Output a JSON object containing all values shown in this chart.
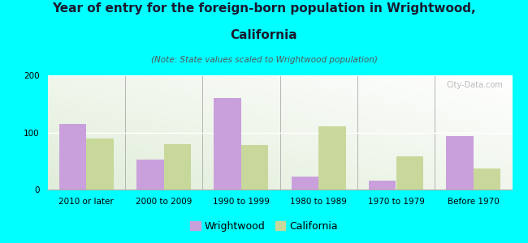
{
  "categories": [
    "2010 or later",
    "2000 to 2009",
    "1990 to 1999",
    "1980 to 1989",
    "1970 to 1979",
    "Before 1970"
  ],
  "wrightwood_values": [
    115,
    52,
    160,
    22,
    15,
    93
  ],
  "california_values": [
    90,
    80,
    78,
    110,
    58,
    37
  ],
  "wrightwood_color": "#c9a0dc",
  "california_color": "#c8d89a",
  "title_line1": "Year of entry for the foreign-born population in Wrightwood,",
  "title_line2": "California",
  "note": "(Note: State values scaled to Wrightwood population)",
  "ylim": [
    0,
    200
  ],
  "yticks": [
    0,
    100,
    200
  ],
  "background_color": "#00ffff",
  "plot_bg_color": "#eef2e0",
  "legend_wrightwood": "Wrightwood",
  "legend_california": "California",
  "bar_width": 0.35,
  "title_fontsize": 11,
  "note_fontsize": 7.5,
  "tick_fontsize": 7.5,
  "legend_fontsize": 9,
  "watermark": "City-Data.com"
}
